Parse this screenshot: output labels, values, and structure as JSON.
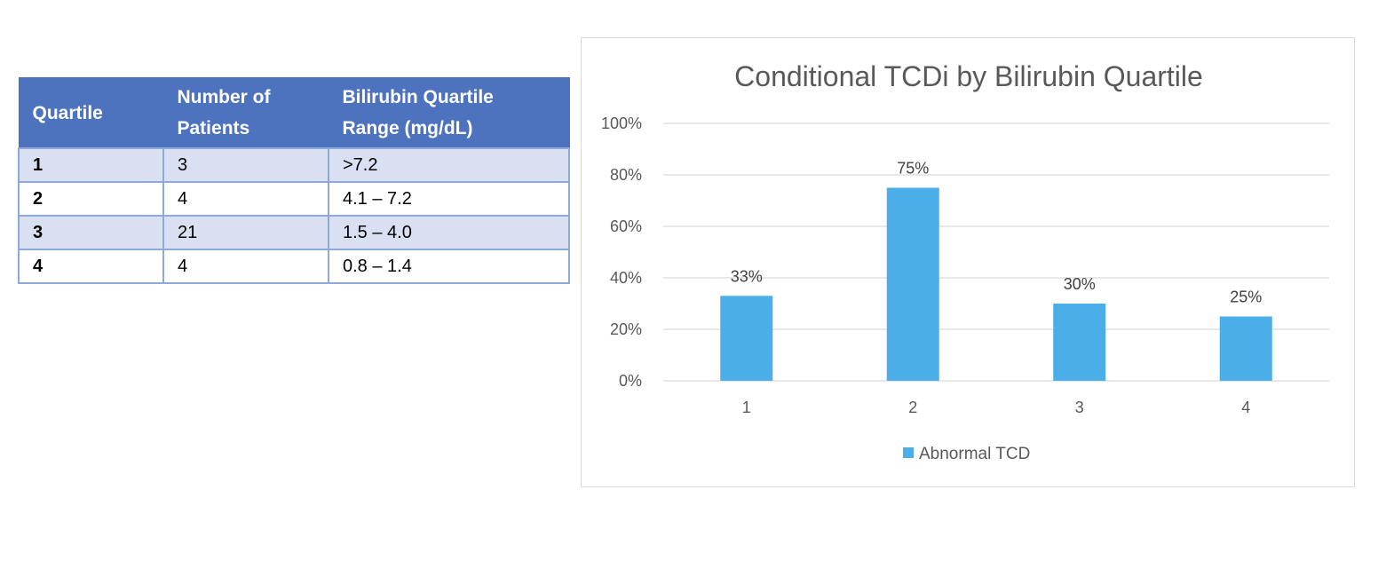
{
  "table": {
    "headers": [
      "Quartile",
      "Number of Patients",
      "Bilirubin Quartile Range (mg/dL)"
    ],
    "rows": [
      [
        "1",
        "3",
        ">7.2"
      ],
      [
        "2",
        "4",
        "4.1 – 7.2"
      ],
      [
        "3",
        "21",
        "1.5 – 4.0"
      ],
      [
        "4",
        "4",
        "0.8 – 1.4"
      ]
    ]
  },
  "chart_data": {
    "type": "bar",
    "title": "Conditional TCDi by Bilirubin Quartile",
    "categories": [
      "1",
      "2",
      "3",
      "4"
    ],
    "series": [
      {
        "name": "Abnormal TCD",
        "values": [
          33,
          75,
          30,
          25
        ],
        "color": "#4baee8"
      }
    ],
    "data_labels": [
      "33%",
      "75%",
      "30%",
      "25%"
    ],
    "ylim": [
      0,
      100
    ],
    "yticks": [
      0,
      20,
      40,
      60,
      80,
      100
    ],
    "ytick_labels": [
      "0%",
      "20%",
      "40%",
      "60%",
      "80%",
      "100%"
    ],
    "grid": true,
    "gridline_color": "#d9d9d9",
    "legend_position": "bottom"
  }
}
